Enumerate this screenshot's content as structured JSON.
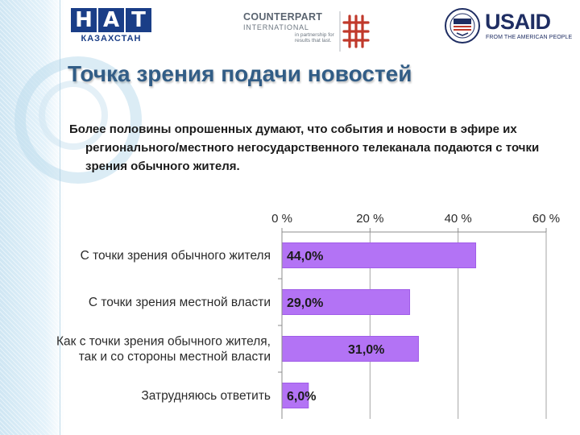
{
  "header": {
    "nat_logo": {
      "letters": [
        "Н",
        "А",
        "Т"
      ],
      "subtitle": "КАЗАХСТАН"
    },
    "counterpart_logo": {
      "name": "COUNTERPART",
      "sub": "INTERNATIONAL",
      "tagline": "in partnership for results that last."
    },
    "usaid_logo": {
      "word": "USAID",
      "tagline": "FROM THE AMERICAN PEOPLE"
    }
  },
  "slide": {
    "title": "Точка зрения подачи новостей",
    "subtitle": "Более половины опрошенных думают, что события и новости в эфире их регионального/местного  негосударственного телеканала подаются с точки зрения обычного жителя."
  },
  "chart_data": {
    "type": "bar",
    "orientation": "horizontal",
    "categories": [
      [
        "С точки зрения обычного жителя"
      ],
      [
        "С точки зрения местной власти"
      ],
      [
        "Как с точки зрения обычного жителя,",
        "так и со стороны местной власти"
      ],
      [
        "Затрудняюсь ответить"
      ]
    ],
    "values": [
      44.0,
      29.0,
      31.0,
      6.0
    ],
    "data_labels": [
      "44,0%",
      "29,0%",
      "31,0%",
      "6,0%"
    ],
    "xlim": [
      0,
      60
    ],
    "ticks": [
      0,
      20,
      40,
      60
    ],
    "tick_labels": [
      "0 %",
      "20 %",
      "40 %",
      "60 %"
    ],
    "axis_position": "top",
    "grid": true,
    "bar_color": "#b373f5",
    "bar_edge_color": "#a05ce8"
  },
  "colors": {
    "title": "#325d86",
    "nat_blue": "#1a3e87",
    "usaid_blue": "#1f2e63",
    "cp_red": "#c0392b"
  }
}
